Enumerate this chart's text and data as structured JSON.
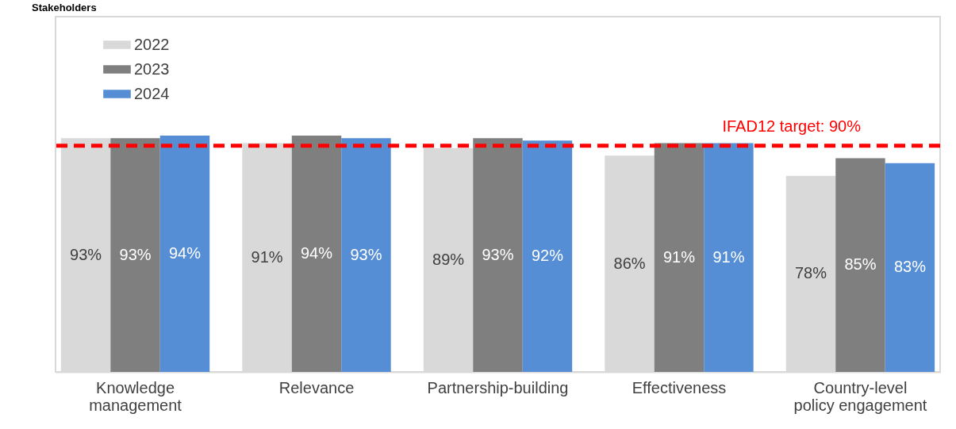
{
  "chart_data": {
    "type": "bar",
    "title": "Stakeholders",
    "categories": [
      "Knowledge management",
      "Relevance",
      "Partnership-building",
      "Effectiveness",
      "Country-level policy engagement"
    ],
    "series": [
      {
        "name": "2022",
        "color": "#d9d9d9",
        "values": [
          93,
          91,
          89,
          86,
          78
        ],
        "value_labels": [
          "93%",
          "91%",
          "89%",
          "86%",
          "78%"
        ]
      },
      {
        "name": "2023",
        "color": "#7f7f7f",
        "values": [
          93,
          94,
          93,
          91,
          85
        ],
        "value_labels": [
          "93%",
          "94%",
          "93%",
          "91%",
          "85%"
        ]
      },
      {
        "name": "2024",
        "color": "#558ed5",
        "values": [
          94,
          93,
          92,
          91,
          83
        ],
        "value_labels": [
          "94%",
          "93%",
          "92%",
          "91%",
          "83%"
        ]
      }
    ],
    "tick_labels": "x",
    "legend": "top left",
    "grid": false,
    "ref_lines": [
      {
        "axis": "y",
        "value": 90,
        "label": "IFAD12 target: 90%",
        "color": "#ff0000",
        "line_style": "dashed"
      }
    ]
  }
}
